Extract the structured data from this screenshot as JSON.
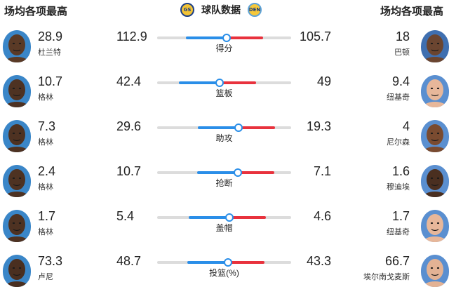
{
  "header": {
    "left_title": "场均各项最高",
    "center_title": "球队数据",
    "right_title": "场均各项最高",
    "left_team_logo": "GS",
    "right_team_logo": "DEN"
  },
  "colors": {
    "left_team": "#2a8ee8",
    "right_team": "#e8323d",
    "track": "#dcdcdc"
  },
  "rows": [
    {
      "category": "得分",
      "left_player": {
        "value": "28.9",
        "name": "杜兰特"
      },
      "left_team_value": "112.9",
      "right_team_value": "105.7",
      "right_player": {
        "value": "18",
        "name": "巴顿"
      }
    },
    {
      "category": "篮板",
      "left_player": {
        "value": "10.7",
        "name": "格林"
      },
      "left_team_value": "42.4",
      "right_team_value": "49",
      "right_player": {
        "value": "9.4",
        "name": "纽基奇"
      }
    },
    {
      "category": "助攻",
      "left_player": {
        "value": "7.3",
        "name": "格林"
      },
      "left_team_value": "29.6",
      "right_team_value": "19.3",
      "right_player": {
        "value": "4",
        "name": "尼尔森"
      }
    },
    {
      "category": "抢断",
      "left_player": {
        "value": "2.4",
        "name": "格林"
      },
      "left_team_value": "10.7",
      "right_team_value": "7.1",
      "right_player": {
        "value": "1.6",
        "name": "穆迪埃"
      }
    },
    {
      "category": "盖帽",
      "left_player": {
        "value": "1.7",
        "name": "格林"
      },
      "left_team_value": "5.4",
      "right_team_value": "4.6",
      "right_player": {
        "value": "1.7",
        "name": "纽基奇"
      }
    },
    {
      "category": "投篮(%)",
      "left_player": {
        "value": "73.3",
        "name": "卢尼"
      },
      "left_team_value": "48.7",
      "right_team_value": "43.3",
      "right_player": {
        "value": "66.7",
        "name": "埃尔南戈麦斯"
      }
    }
  ]
}
